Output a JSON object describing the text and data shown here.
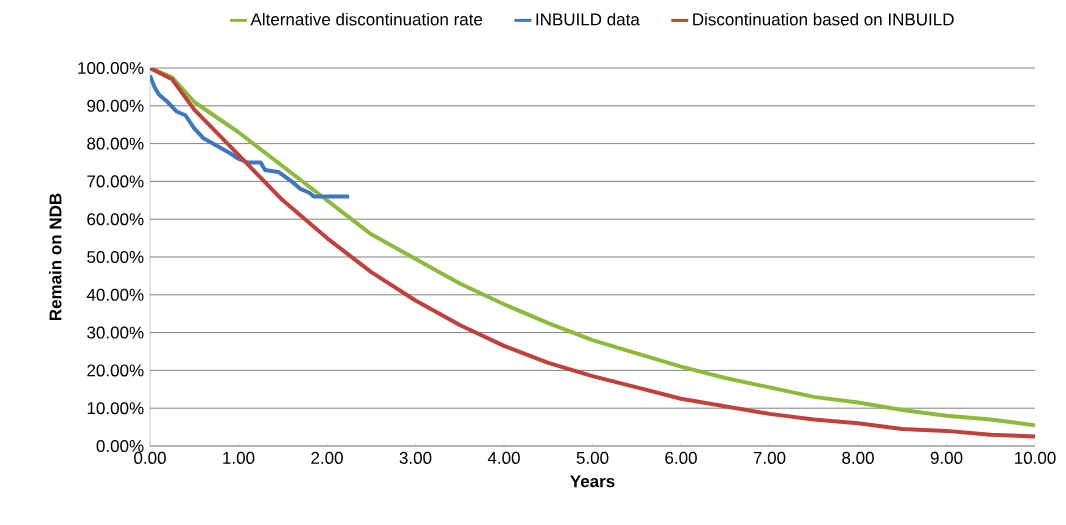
{
  "chart_data": {
    "type": "line",
    "xlabel": "Years",
    "ylabel": "Remain on NDB",
    "xlim": [
      0,
      10
    ],
    "ylim": [
      0,
      100
    ],
    "xticks": [
      {
        "value": 0,
        "label": "0.00"
      },
      {
        "value": 1,
        "label": "1.00"
      },
      {
        "value": 2,
        "label": "2.00"
      },
      {
        "value": 3,
        "label": "3.00"
      },
      {
        "value": 4,
        "label": "4.00"
      },
      {
        "value": 5,
        "label": "5.00"
      },
      {
        "value": 6,
        "label": "6.00"
      },
      {
        "value": 7,
        "label": "7.00"
      },
      {
        "value": 8,
        "label": "8.00"
      },
      {
        "value": 9,
        "label": "9.00"
      },
      {
        "value": 10,
        "label": "10.00"
      }
    ],
    "yticks": [
      {
        "value": 0,
        "label": "0.00%"
      },
      {
        "value": 10,
        "label": "10.00%"
      },
      {
        "value": 20,
        "label": "20.00%"
      },
      {
        "value": 30,
        "label": "30.00%"
      },
      {
        "value": 40,
        "label": "40.00%"
      },
      {
        "value": 50,
        "label": "50.00%"
      },
      {
        "value": 60,
        "label": "60.00%"
      },
      {
        "value": 70,
        "label": "70.00%"
      },
      {
        "value": 80,
        "label": "80.00%"
      },
      {
        "value": 90,
        "label": "90.00%"
      },
      {
        "value": 100,
        "label": "100.00%"
      }
    ],
    "grid": "y",
    "legend": "top",
    "marker": "none",
    "line_style": "solid",
    "series": [
      {
        "name": "Alternative discontinuation rate",
        "color": "#8cbb3c",
        "x": [
          0,
          0.25,
          0.5,
          1,
          1.5,
          2,
          2.5,
          3,
          3.5,
          4,
          4.5,
          5,
          5.5,
          6,
          6.5,
          7,
          7.5,
          8,
          8.5,
          9,
          9.5,
          10
        ],
        "values": [
          100,
          97.5,
          91,
          83,
          74,
          65,
          56,
          49.5,
          43,
          37.5,
          32.5,
          28,
          24.5,
          21,
          18,
          15.5,
          13,
          11.5,
          9.5,
          8,
          7,
          5.5
        ]
      },
      {
        "name": "INBUILD data",
        "color": "#3f76c0",
        "x": [
          0,
          0.05,
          0.1,
          0.2,
          0.3,
          0.4,
          0.5,
          0.6,
          0.75,
          0.9,
          1.0,
          1.1,
          1.25,
          1.3,
          1.45,
          1.6,
          1.7,
          1.8,
          1.85,
          2.25
        ],
        "values": [
          98,
          95,
          93,
          91,
          88.5,
          87.5,
          84,
          81.5,
          79.5,
          77.5,
          76,
          75,
          75,
          73,
          72.5,
          70,
          68,
          67,
          66,
          66
        ]
      },
      {
        "name": "Discontinuation based on INBUILD",
        "color": "#c0403c",
        "x": [
          0,
          0.25,
          0.5,
          1,
          1.5,
          2,
          2.5,
          3,
          3.5,
          4,
          4.5,
          5,
          5.5,
          6,
          6.5,
          7,
          7.5,
          8,
          8.5,
          9,
          9.5,
          10
        ],
        "values": [
          100,
          97,
          89,
          77,
          65,
          55,
          46,
          38.5,
          32,
          26.5,
          22,
          18.5,
          15.5,
          12.5,
          10.5,
          8.5,
          7,
          6,
          4.5,
          4,
          3,
          2.5
        ]
      }
    ]
  }
}
